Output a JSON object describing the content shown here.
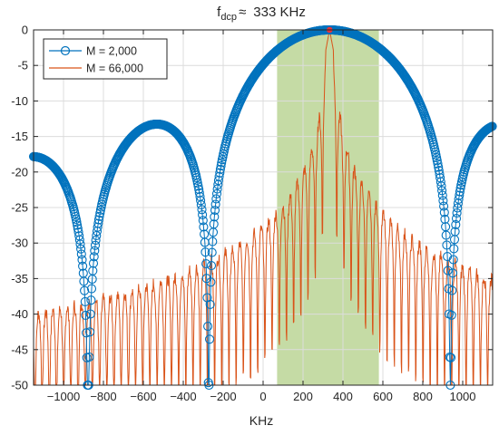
{
  "chart_data": {
    "type": "line",
    "title": {
      "prefix": "f",
      "subscript": "dcp",
      "relation": "≈",
      "value": "333 KHz"
    },
    "xlabel": "KHz",
    "ylabel": "",
    "xlim": [
      -1150,
      1150
    ],
    "ylim": [
      -50,
      0
    ],
    "grid": true,
    "legend_position": "top-left",
    "x_ticks": [
      -1000,
      -800,
      -600,
      -400,
      -200,
      0,
      200,
      400,
      600,
      800,
      1000
    ],
    "x_tick_labels": [
      "−1000",
      "−800",
      "−600",
      "−400",
      "−200",
      "0",
      "200",
      "400",
      "600",
      "800",
      "1000"
    ],
    "y_ticks": [
      0,
      -5,
      -10,
      -15,
      -20,
      -25,
      -30,
      -35,
      -40,
      -45,
      -50
    ],
    "y_tick_labels": [
      "0",
      "-5",
      "-10",
      "-15",
      "-20",
      "-25",
      "-30",
      "-35",
      "-40",
      "-45",
      "-50"
    ],
    "shaded_band": {
      "x_range": [
        70,
        580
      ],
      "color": "#c5dba5"
    },
    "peak_marker": {
      "x": 333,
      "y": 0,
      "color": "#e8333a"
    },
    "series": [
      {
        "name": "M = 2,000",
        "color": "#0072BD",
        "marker": "circle",
        "model": {
          "center": 333,
          "null_spacing": 605,
          "noise_floor_db": -50,
          "left_edge_db": -17.8,
          "right_edge_db": -13.2
        }
      },
      {
        "name": "M = 66,000",
        "color": "#D95319",
        "marker": "none",
        "model": {
          "center": 333,
          "ripple_period": 36,
          "main_lobe_half_width": 20,
          "noise_floor_db": -50
        }
      }
    ]
  }
}
